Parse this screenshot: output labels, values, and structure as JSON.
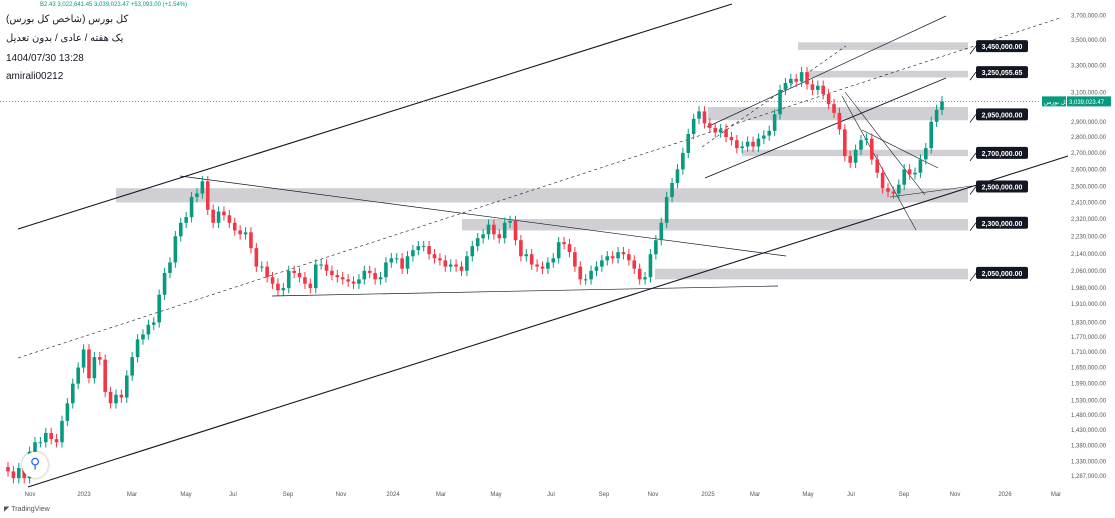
{
  "header": {
    "symbol_title": "کل بورس (شاخص کل بورس)",
    "interval_line": "یک هفته / عادی / بدون تعدیل",
    "timestamp": "1404/07/30 13:28",
    "author": "amirali00212",
    "ohlc_line": "B2.43 3,022,641.45 3,039,023.47 +53,093.00 (+1.54%)"
  },
  "watermark": "TradingView",
  "colors": {
    "up": "#089981",
    "down": "#f23645",
    "zone": "#c8c8cc",
    "line": "#131722",
    "price_line": "#089981"
  },
  "chart_data": {
    "type": "candlestick",
    "title": "کل بورس (شاخص کل بورس)",
    "y_scale": "log",
    "ylim": [
      1240000,
      3800000
    ],
    "y_ticks": [
      "3,700,000.00",
      "3,500,000.00",
      "3,300,000.00",
      "3,100,000.00",
      "2,900,000.00",
      "2,800,000.00",
      "2,700,000.00",
      "2,600,000.00",
      "2,500,000.00",
      "2,410,000.00",
      "2,320,000.00",
      "2,230,000.00",
      "2,140,000.00",
      "2,060,000.00",
      "1,980,000.00",
      "1,910,000.00",
      "1,830,000.00",
      "1,770,000.00",
      "1,710,000.00",
      "1,650,000.00",
      "1,590,000.00",
      "1,530,000.00",
      "1,480,000.00",
      "1,430,000.00",
      "1,380,000.00",
      "1,330,000.00",
      "1,287,000.00"
    ],
    "x_ticks": [
      "Nov",
      "2023",
      "Mar",
      "May",
      "Jul",
      "Sep",
      "Nov",
      "2024",
      "Mar",
      "May",
      "Jul",
      "Sep",
      "Nov",
      "2025",
      "Mar",
      "May",
      "Jul",
      "Sep",
      "Nov",
      "2026",
      "Mar"
    ],
    "last_price": {
      "label": "کل بورس",
      "value": "3,039,023.47"
    },
    "levels": [
      {
        "label": "3,450,000.00",
        "value": 3450000,
        "zone": [
          3420000,
          3480000
        ]
      },
      {
        "label": "3,250,055.65",
        "value": 3250055.65,
        "zone": [
          3210000,
          3260000
        ]
      },
      {
        "label": "2,950,000.00",
        "value": 2950000,
        "zone": [
          2910000,
          3000000
        ]
      },
      {
        "label": "2,700,000.00",
        "value": 2700000,
        "zone": [
          2680000,
          2720000
        ]
      },
      {
        "label": "2,500,000.00",
        "value": 2500000,
        "zone": [
          2410000,
          2490000
        ]
      },
      {
        "label": "2,300,000.00",
        "value": 2300000,
        "zone": [
          2260000,
          2320000
        ]
      },
      {
        "label": "2,050,000.00",
        "value": 2050000,
        "zone": [
          2020000,
          2070000
        ]
      }
    ],
    "candles_close": [
      1300000,
      1280000,
      1310000,
      1280000,
      1360000,
      1390000,
      1390000,
      1420000,
      1400000,
      1390000,
      1460000,
      1520000,
      1590000,
      1650000,
      1720000,
      1610000,
      1690000,
      1680000,
      1560000,
      1520000,
      1550000,
      1540000,
      1620000,
      1690000,
      1760000,
      1780000,
      1820000,
      1830000,
      1950000,
      2050000,
      2100000,
      2230000,
      2300000,
      2330000,
      2440000,
      2460000,
      2530000,
      2370000,
      2300000,
      2360000,
      2340000,
      2300000,
      2260000,
      2240000,
      2250000,
      2170000,
      2080000,
      2080000,
      2030000,
      2000000,
      1970000,
      1980000,
      2060000,
      2050000,
      2030000,
      2000000,
      1980000,
      2090000,
      2090000,
      2060000,
      2040000,
      2030000,
      2020000,
      2010000,
      2000000,
      2020000,
      2060000,
      2050000,
      2020000,
      2030000,
      2100000,
      2120000,
      2120000,
      2070000,
      2130000,
      2160000,
      2180000,
      2180000,
      2140000,
      2120000,
      2110000,
      2080000,
      2090000,
      2080000,
      2060000,
      2130000,
      2180000,
      2220000,
      2240000,
      2290000,
      2240000,
      2220000,
      2300000,
      2310000,
      2210000,
      2130000,
      2140000,
      2090000,
      2080000,
      2070000,
      2100000,
      2120000,
      2200000,
      2190000,
      2150000,
      2080000,
      2020000,
      2020000,
      2060000,
      2080000,
      2110000,
      2130000,
      2120000,
      2150000,
      2140000,
      2110000,
      2070000,
      2020000,
      2030000,
      2140000,
      2210000,
      2300000,
      2440000,
      2520000,
      2600000,
      2700000,
      2820000,
      2920000,
      2970000,
      2890000,
      2860000,
      2830000,
      2850000,
      2800000,
      2780000,
      2730000,
      2740000,
      2770000,
      2740000,
      2790000,
      2810000,
      2840000,
      2950000,
      3120000,
      3170000,
      3200000,
      3180000,
      3250000,
      3160000,
      3120000,
      3150000,
      3090000,
      3020000,
      2960000,
      2850000,
      2680000,
      2640000,
      2720000,
      2780000,
      2790000,
      2660000,
      2580000,
      2490000,
      2470000,
      2460000,
      2510000,
      2600000,
      2570000,
      2580000,
      2660000,
      2730000,
      2900000,
      2980000,
      3039023
    ]
  }
}
